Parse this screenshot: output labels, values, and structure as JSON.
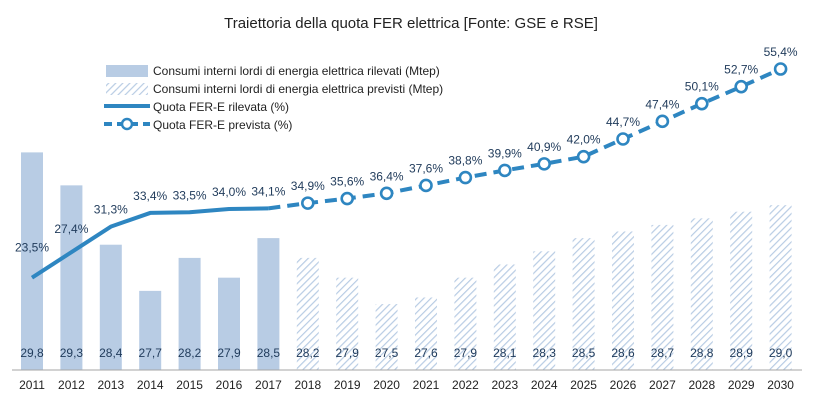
{
  "chart_data": {
    "type": "bar+line",
    "title": "Traiettoria della quota FER elettrica [Fonte: GSE e RSE]",
    "categories": [
      "2011",
      "2012",
      "2013",
      "2014",
      "2015",
      "2016",
      "2017",
      "2018",
      "2019",
      "2020",
      "2021",
      "2022",
      "2023",
      "2024",
      "2025",
      "2026",
      "2027",
      "2028",
      "2029",
      "2030"
    ],
    "bar_series": [
      {
        "name": "Consumi interni lordi di energia elettrica rilevati (Mtep)",
        "style": "solid",
        "color": "#b8cce4",
        "values": [
          29.8,
          29.3,
          28.4,
          27.7,
          28.2,
          27.9,
          28.5,
          null,
          null,
          null,
          null,
          null,
          null,
          null,
          null,
          null,
          null,
          null,
          null,
          null
        ]
      },
      {
        "name": "Consumi interni lordi di energia elettrica previsti (Mtep)",
        "style": "hatched",
        "color": "#b8cce4",
        "values": [
          null,
          null,
          null,
          null,
          null,
          null,
          null,
          28.2,
          27.9,
          27.5,
          27.6,
          27.9,
          28.1,
          28.3,
          28.5,
          28.6,
          28.7,
          28.8,
          28.9,
          29.0
        ]
      }
    ],
    "bar_value_labels": [
      "29,8",
      "29,3",
      "28,4",
      "27,7",
      "28,2",
      "27,9",
      "28,5",
      "28,2",
      "27,9",
      "27,5",
      "27,6",
      "27,9",
      "28,1",
      "28,3",
      "28,5",
      "28,6",
      "28,7",
      "28,8",
      "28,9",
      "29,0"
    ],
    "bar_range": [
      26.5,
      30.2
    ],
    "line_series": [
      {
        "name": "Quota FER-E rilevata (%)",
        "style": "solid",
        "color": "#2e86c1",
        "values": [
          23.5,
          27.4,
          31.3,
          33.4,
          33.5,
          34.0,
          34.1,
          null,
          null,
          null,
          null,
          null,
          null,
          null,
          null,
          null,
          null,
          null,
          null,
          null
        ]
      },
      {
        "name": "Quota FER-E prevista (%)",
        "style": "dashed-markers",
        "color": "#2e86c1",
        "values": [
          null,
          null,
          null,
          null,
          null,
          null,
          34.1,
          34.9,
          35.6,
          36.4,
          37.6,
          38.8,
          39.9,
          40.9,
          42.0,
          44.7,
          47.4,
          50.1,
          52.7,
          55.4
        ]
      }
    ],
    "line_value_labels": [
      "23,5%",
      "27,4%",
      "31,3%",
      "33,4%",
      "33,5%",
      "34,0%",
      "34,1%",
      "34,9%",
      "35,6%",
      "36,4%",
      "37,6%",
      "38,8%",
      "39,9%",
      "40,9%",
      "42,0%",
      "44,7%",
      "47,4%",
      "50,1%",
      "52,7%",
      "55,4%"
    ],
    "line_range": [
      10,
      58
    ],
    "legend_position": "top-left",
    "grid": false
  }
}
